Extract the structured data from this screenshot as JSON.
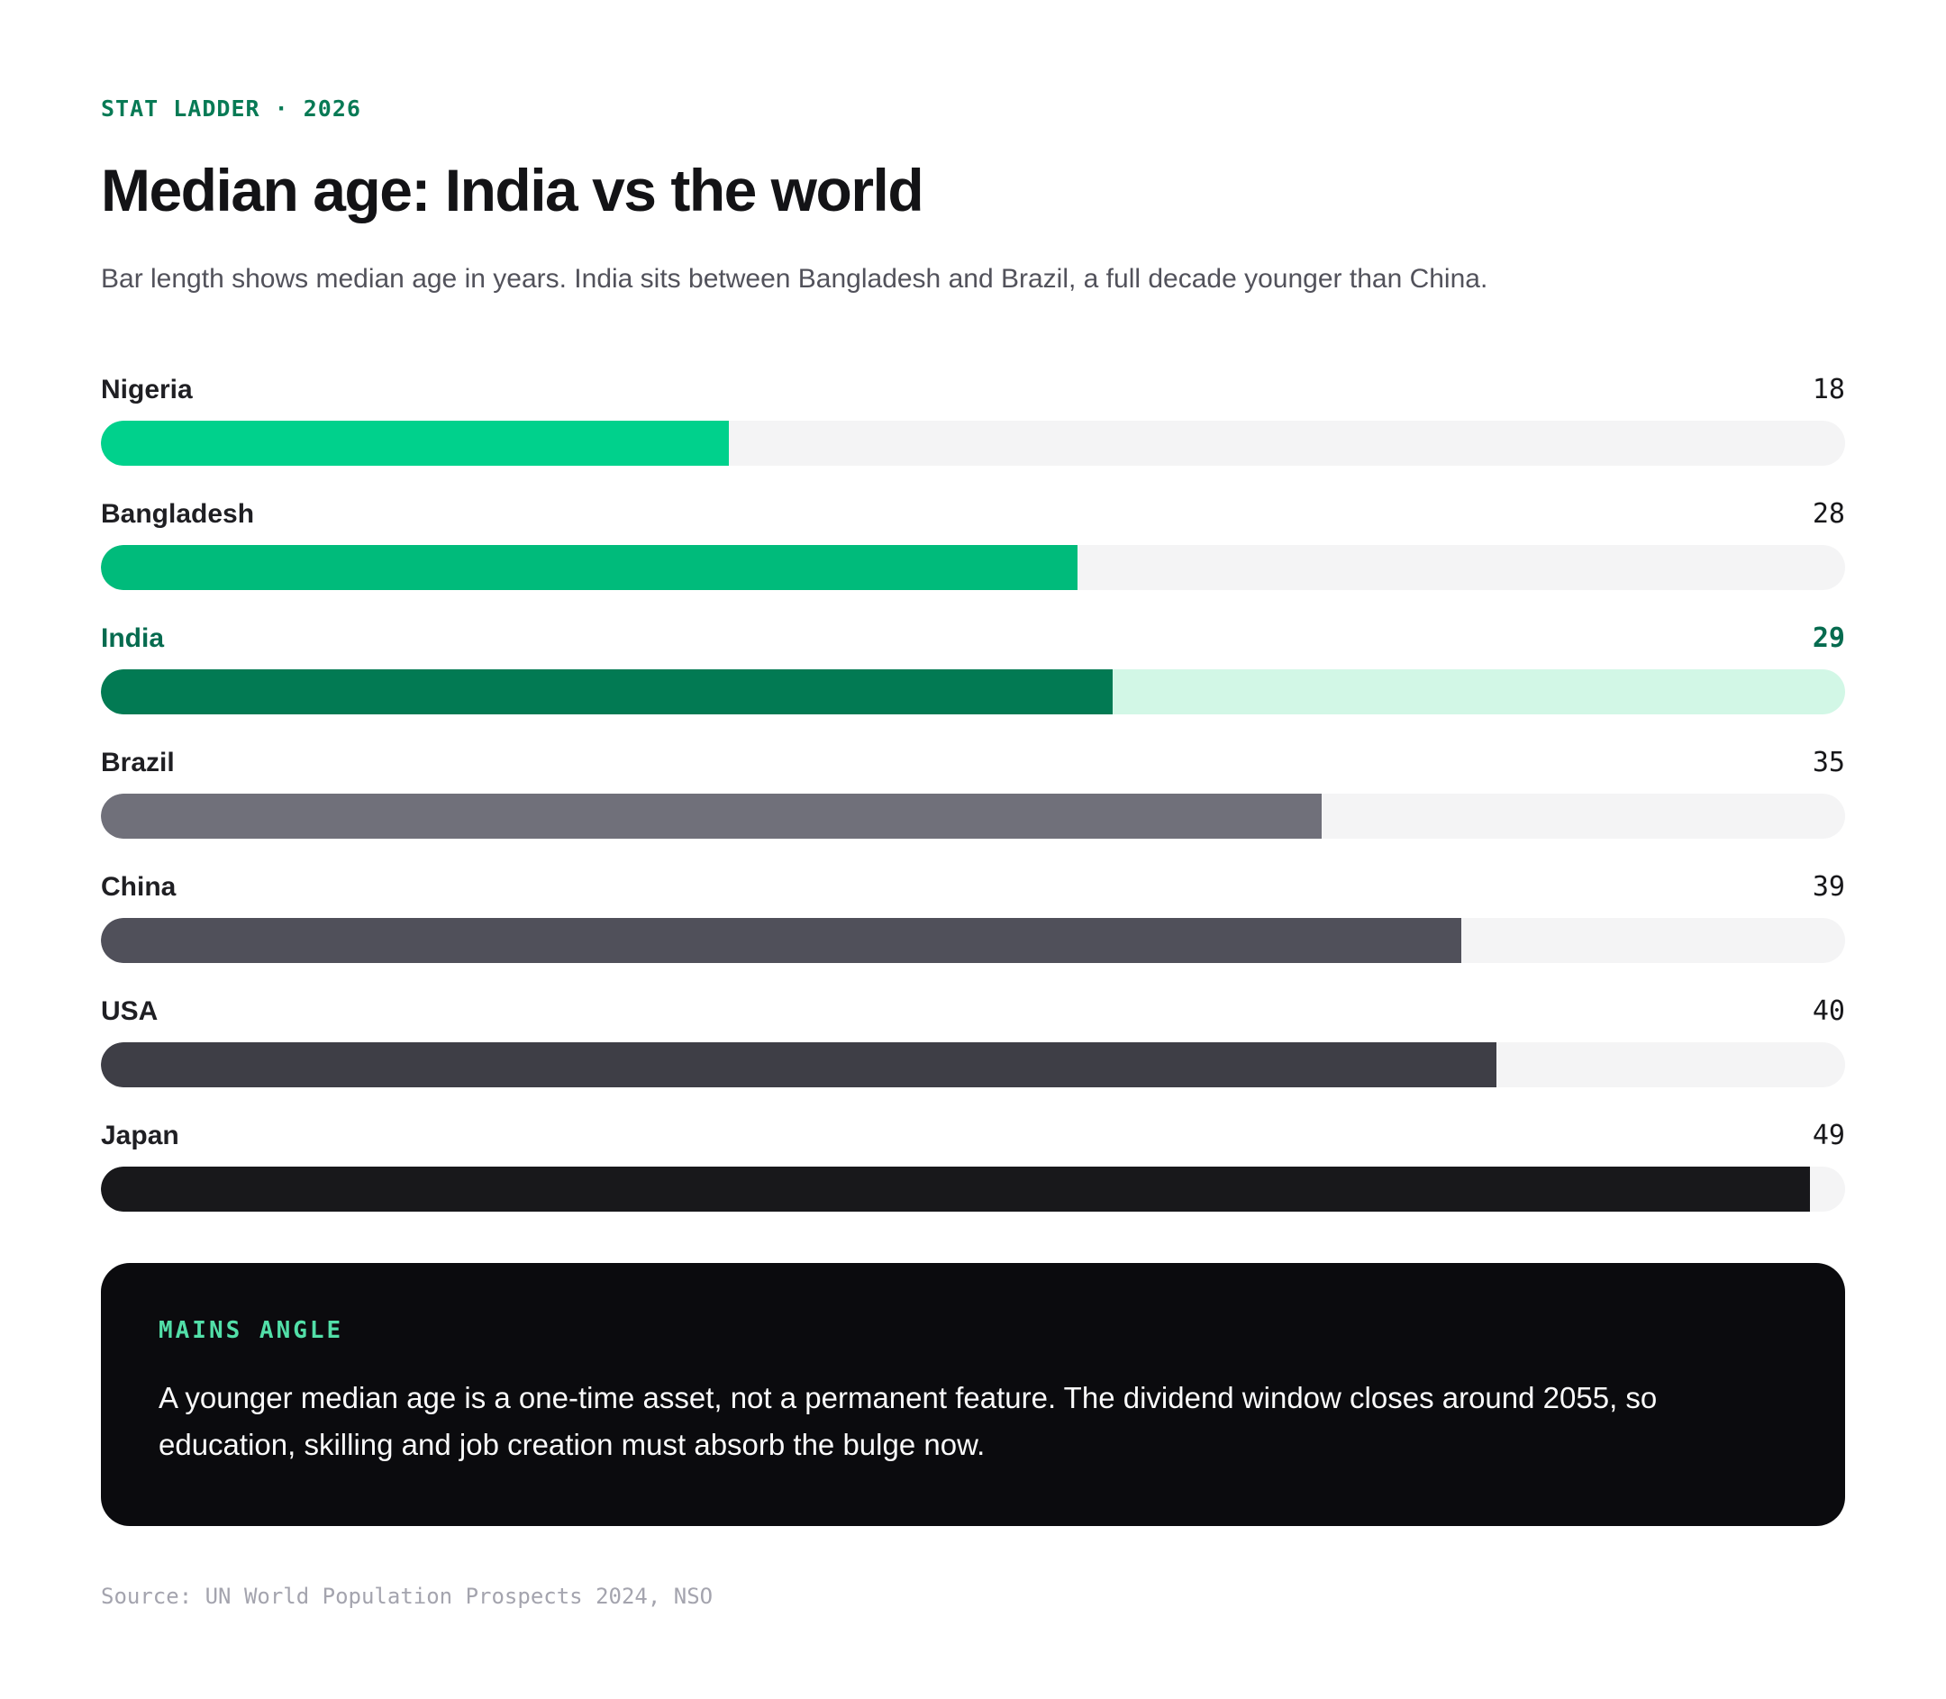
{
  "header": {
    "eyebrow": "STAT LADDER · 2026",
    "title": "Median age: India vs the world",
    "subtitle": "Bar length shows median age in years. India sits between Bangladesh and Brazil, a full decade younger than China."
  },
  "chart_data": {
    "type": "bar",
    "orientation": "horizontal",
    "title": "Median age: India vs the world",
    "unit": "years (median age)",
    "categories": [
      "Nigeria",
      "Bangladesh",
      "India",
      "Brazil",
      "China",
      "USA",
      "Japan"
    ],
    "values": [
      18,
      28,
      29,
      35,
      39,
      40,
      49
    ],
    "xlim": [
      0,
      50
    ],
    "grid": false,
    "legend": false,
    "highlight_category": "India",
    "value_labels_position": "right-aligned above bar"
  },
  "scale_max": 50,
  "rows": [
    {
      "country": "Nigeria",
      "value": "18",
      "fill": "#00d18c",
      "track": "#f4f4f5",
      "emph": false,
      "text_color": "#1f1f23",
      "value_color": "#18181b"
    },
    {
      "country": "Bangladesh",
      "value": "28",
      "fill": "#00bb7b",
      "track": "#f4f4f5",
      "emph": false,
      "text_color": "#1f1f23",
      "value_color": "#18181b"
    },
    {
      "country": "India",
      "value": "29",
      "fill": "#027a53",
      "track": "#d2f7e6",
      "emph": true,
      "text_color": "#066b4f",
      "value_color": "#066b4f"
    },
    {
      "country": "Brazil",
      "value": "35",
      "fill": "#70707a",
      "track": "#f4f4f5",
      "emph": false,
      "text_color": "#1f1f23",
      "value_color": "#18181b"
    },
    {
      "country": "China",
      "value": "39",
      "fill": "#50505a",
      "track": "#f4f4f5",
      "emph": false,
      "text_color": "#1f1f23",
      "value_color": "#18181b"
    },
    {
      "country": "USA",
      "value": "40",
      "fill": "#3e3e46",
      "track": "#f4f4f5",
      "emph": false,
      "text_color": "#1f1f23",
      "value_color": "#18181b"
    },
    {
      "country": "Japan",
      "value": "49",
      "fill": "#18181b",
      "track": "#f4f4f5",
      "emph": false,
      "text_color": "#1f1f23",
      "value_color": "#18181b"
    }
  ],
  "callout": {
    "kicker": "MAINS ANGLE",
    "text": "A younger median age is a one-time asset, not a permanent feature. The dividend window closes around 2055, so education, skilling and job creation must absorb the bulge now."
  },
  "footer": {
    "source": "Source: UN World Population Prospects 2024, NSO"
  },
  "colors": {
    "accent_green": "#00d18c",
    "india_green": "#027a53",
    "india_track_mint": "#d2f7e6",
    "eyebrow_green": "#087a55",
    "kicker_mint": "#52dfa8",
    "track_gray": "#f4f4f5",
    "callout_bg": "#0b0b0e",
    "subtitle_gray": "#52525b",
    "source_gray": "#a4a4ae"
  }
}
